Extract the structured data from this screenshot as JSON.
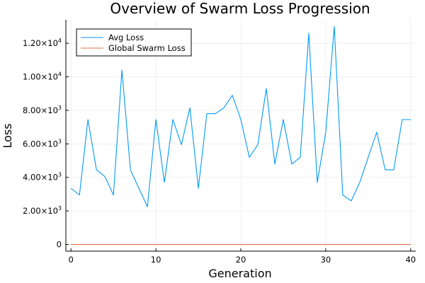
{
  "chart_data": {
    "type": "line",
    "title": "Overview of Swarm Loss Progression",
    "xlabel": "Generation",
    "ylabel": "Loss",
    "xlim": [
      -0.6,
      40.6
    ],
    "ylim": [
      -400,
      13400
    ],
    "x_ticks": [
      0,
      10,
      20,
      30,
      40
    ],
    "x_tick_labels": [
      "0",
      "10",
      "20",
      "30",
      "40"
    ],
    "y_ticks": [
      0,
      2000,
      4000,
      6000,
      8000,
      10000,
      12000
    ],
    "y_tick_labels": [
      {
        "mantissa": "0",
        "exp": ""
      },
      {
        "mantissa": "2.00×10",
        "exp": "3"
      },
      {
        "mantissa": "4.00×10",
        "exp": "3"
      },
      {
        "mantissa": "6.00×10",
        "exp": "3"
      },
      {
        "mantissa": "8.00×10",
        "exp": "3"
      },
      {
        "mantissa": "1.00×10",
        "exp": "4"
      },
      {
        "mantissa": "1.20×10",
        "exp": "4"
      }
    ],
    "grid": true,
    "legend_position": "top-left",
    "x": [
      0,
      1,
      2,
      3,
      4,
      5,
      6,
      7,
      8,
      9,
      10,
      11,
      12,
      13,
      14,
      15,
      16,
      17,
      18,
      19,
      20,
      21,
      22,
      23,
      24,
      25,
      26,
      27,
      28,
      29,
      30,
      31,
      32,
      33,
      34,
      35,
      36,
      37,
      38,
      39,
      40
    ],
    "series": [
      {
        "name": "Avg Loss",
        "color": "#009af9",
        "values": [
          3350,
          2950,
          7450,
          4450,
          4050,
          2950,
          10400,
          4450,
          3350,
          2250,
          7450,
          3700,
          7450,
          5950,
          8150,
          3350,
          7800,
          7800,
          8150,
          8900,
          7450,
          5200,
          5950,
          9300,
          4800,
          7450,
          4800,
          5200,
          12600,
          3700,
          6700,
          13000,
          2950,
          2600,
          3700,
          5200,
          6700,
          4450,
          4450,
          7450,
          7450
        ]
      },
      {
        "name": "Global Swarm Loss",
        "color": "#e26f46",
        "values": [
          0,
          0,
          0,
          0,
          0,
          0,
          0,
          0,
          0,
          0,
          0,
          0,
          0,
          0,
          0,
          0,
          0,
          0,
          0,
          0,
          0,
          0,
          0,
          0,
          0,
          0,
          0,
          0,
          0,
          0,
          0,
          0,
          0,
          0,
          0,
          0,
          0,
          0,
          0,
          0,
          0
        ]
      }
    ]
  }
}
